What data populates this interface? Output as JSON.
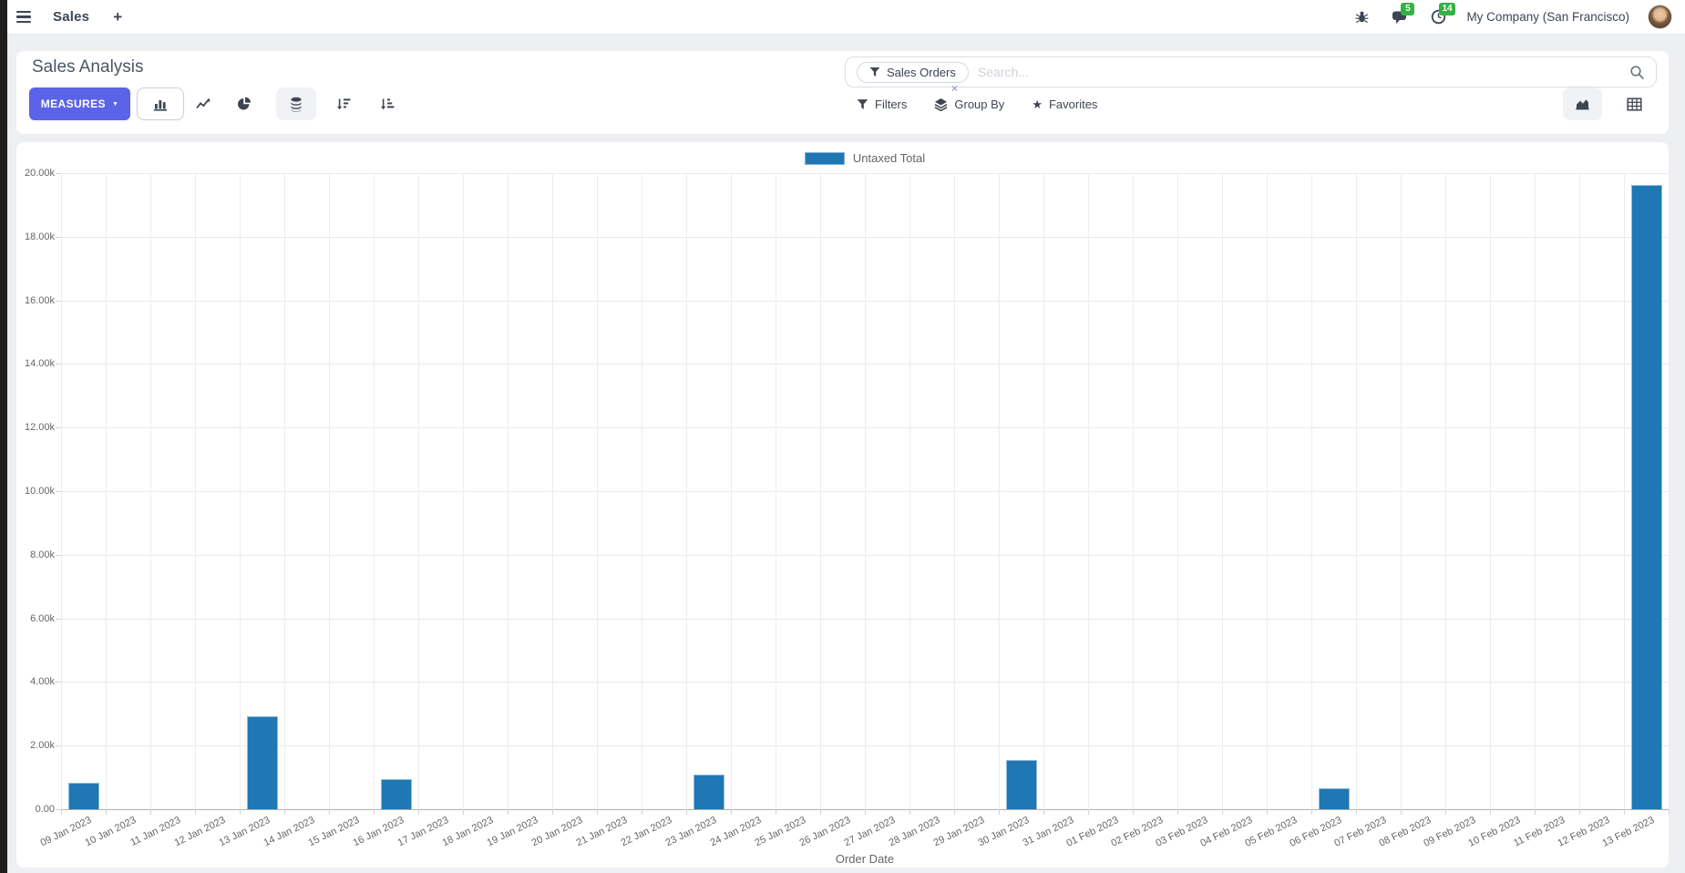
{
  "navbar": {
    "app": "Sales",
    "new_tab_label": "+",
    "messages_count": "5",
    "activities_count": "14",
    "company": "My Company (San Francisco)"
  },
  "control_panel": {
    "title": "Sales Analysis",
    "measures_button": "MEASURES",
    "measures_caret": "▼",
    "search": {
      "facet_label": "Sales Orders",
      "placeholder": "Search...",
      "remove_facet_glyph": "×"
    },
    "menus": {
      "filters": "Filters",
      "group_by": "Group By",
      "favorites": "Favorites",
      "favorites_star": "★"
    }
  },
  "colors": {
    "accent_indigo": "#5b63e8",
    "bar_blue": "#1f77b4",
    "badge_green": "#34b344"
  },
  "chart_data": {
    "type": "bar",
    "title": "",
    "legend_position": "top",
    "series": [
      {
        "name": "Untaxed Total",
        "color": "#1f77b4",
        "values": [
          830,
          0,
          0,
          0,
          2910,
          0,
          0,
          950,
          0,
          0,
          0,
          0,
          0,
          0,
          1090,
          0,
          0,
          0,
          0,
          0,
          0,
          1540,
          0,
          0,
          0,
          0,
          0,
          0,
          660,
          0,
          0,
          0,
          0,
          0,
          0,
          19630
        ]
      }
    ],
    "categories": [
      "09 Jan 2023",
      "10 Jan 2023",
      "11 Jan 2023",
      "12 Jan 2023",
      "13 Jan 2023",
      "14 Jan 2023",
      "15 Jan 2023",
      "16 Jan 2023",
      "17 Jan 2023",
      "18 Jan 2023",
      "19 Jan 2023",
      "20 Jan 2023",
      "21 Jan 2023",
      "22 Jan 2023",
      "23 Jan 2023",
      "24 Jan 2023",
      "25 Jan 2023",
      "26 Jan 2023",
      "27 Jan 2023",
      "28 Jan 2023",
      "29 Jan 2023",
      "30 Jan 2023",
      "31 Jan 2023",
      "01 Feb 2023",
      "02 Feb 2023",
      "03 Feb 2023",
      "04 Feb 2023",
      "05 Feb 2023",
      "06 Feb 2023",
      "07 Feb 2023",
      "08 Feb 2023",
      "09 Feb 2023",
      "10 Feb 2023",
      "11 Feb 2023",
      "12 Feb 2023",
      "13 Feb 2023"
    ],
    "xlabel": "Order Date",
    "ylabel": "",
    "ylim": [
      0,
      20000
    ],
    "ytick_step": 2000,
    "ytick_labels_top_to_bottom": [
      "20.00k",
      "18.00k",
      "16.00k",
      "14.00k",
      "12.00k",
      "10.00k",
      "8.00k",
      "6.00k",
      "4.00k",
      "2.00k",
      "0.00"
    ],
    "grid": true
  }
}
